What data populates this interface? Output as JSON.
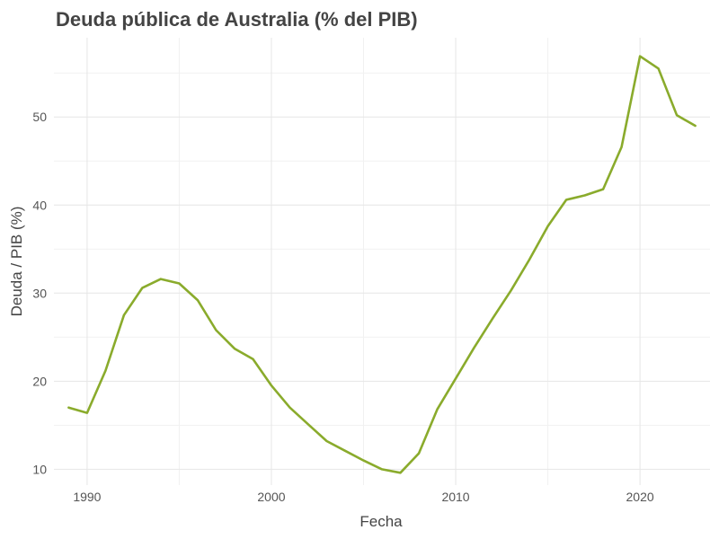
{
  "chart_data": {
    "type": "line",
    "title": "Deuda pública de Australia (% del PIB)",
    "xlabel": "Fecha",
    "ylabel": "Deuda / PIB (%)",
    "xlim": [
      1988.2,
      2023.8
    ],
    "ylim": [
      8.2,
      59.0
    ],
    "x_ticks": [
      1990,
      2000,
      2010,
      2020
    ],
    "y_ticks": [
      10,
      20,
      30,
      40,
      50
    ],
    "x_tick_labels": [
      "1990",
      "2000",
      "2010",
      "2020"
    ],
    "y_tick_labels": [
      "10",
      "20",
      "30",
      "40",
      "50"
    ],
    "grid": true,
    "legend": "none",
    "colors": {
      "line": "#8aab2c"
    },
    "series": [
      {
        "x": [
          1989,
          1990,
          1991,
          1992,
          1993,
          1994,
          1995,
          1996,
          1997,
          1998,
          1999,
          2000,
          2001,
          2002,
          2003,
          2004,
          2005,
          2006,
          2007,
          2008,
          2009,
          2010,
          2011,
          2012,
          2013,
          2014,
          2015,
          2016,
          2017,
          2018,
          2019,
          2020,
          2021,
          2022,
          2023
        ],
        "values": [
          17.0,
          16.4,
          21.2,
          27.5,
          30.6,
          31.6,
          31.1,
          29.2,
          25.8,
          23.7,
          22.5,
          19.5,
          17.0,
          15.1,
          13.2,
          12.1,
          11.0,
          10.0,
          9.6,
          11.8,
          16.8,
          20.3,
          23.8,
          27.1,
          30.3,
          33.8,
          37.6,
          40.6,
          41.1,
          41.8,
          46.6,
          56.9,
          55.5,
          50.2,
          49.0
        ]
      }
    ]
  }
}
